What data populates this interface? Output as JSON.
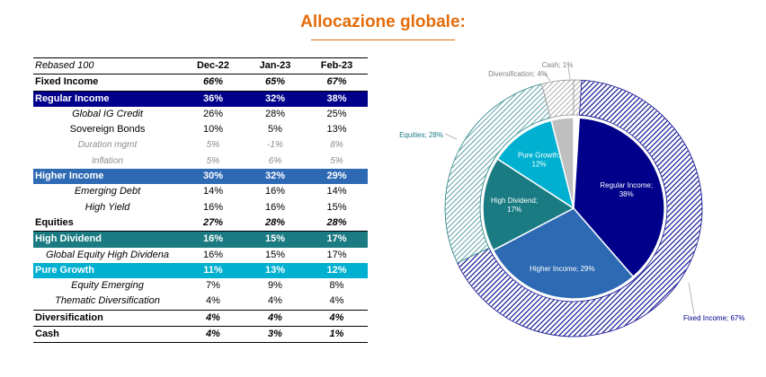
{
  "title": "Allocazione globale:",
  "table": {
    "header": [
      "Rebased 100",
      "Dec-22",
      "Jan-23",
      "Feb-23"
    ],
    "rows": [
      {
        "label": "Fixed Income",
        "values": [
          "66%",
          "65%",
          "67%"
        ],
        "style": "section"
      },
      {
        "label": "Regular Income",
        "values": [
          "36%",
          "32%",
          "38%"
        ],
        "style": "bar",
        "color": "#00008b"
      },
      {
        "label": "Global IG Credit",
        "values": [
          "26%",
          "28%",
          "25%"
        ],
        "style": "sub1-ital"
      },
      {
        "label": "Sovereign Bonds",
        "values": [
          "10%",
          "5%",
          "13%"
        ],
        "style": "sub1"
      },
      {
        "label": "Duration mgmt",
        "values": [
          "5%",
          "-1%",
          "8%"
        ],
        "style": "sub2"
      },
      {
        "label": "Inflation",
        "values": [
          "5%",
          "6%",
          "5%"
        ],
        "style": "sub2"
      },
      {
        "label": "Higher Income",
        "values": [
          "30%",
          "32%",
          "29%"
        ],
        "style": "bar",
        "color": "#2e6ab4"
      },
      {
        "label": "Emerging Debt",
        "values": [
          "14%",
          "16%",
          "14%"
        ],
        "style": "sub1-ital"
      },
      {
        "label": "High Yield",
        "values": [
          "16%",
          "16%",
          "15%"
        ],
        "style": "sub1-ital"
      },
      {
        "label": "Equities",
        "values": [
          "27%",
          "28%",
          "28%"
        ],
        "style": "section"
      },
      {
        "label": "High Dividend",
        "values": [
          "16%",
          "15%",
          "17%"
        ],
        "style": "bar",
        "color": "#1b7b82"
      },
      {
        "label": "Global Equity High Dividena",
        "values": [
          "16%",
          "15%",
          "17%"
        ],
        "style": "sub1-ital"
      },
      {
        "label": "Pure Growth",
        "values": [
          "11%",
          "13%",
          "12%"
        ],
        "style": "bar",
        "color": "#00b0d0"
      },
      {
        "label": "Equity Emerging",
        "values": [
          "7%",
          "9%",
          "8%"
        ],
        "style": "sub1-ital"
      },
      {
        "label": "Thematic Diversification",
        "values": [
          "4%",
          "4%",
          "4%"
        ],
        "style": "sub1-ital"
      },
      {
        "label": "Diversification",
        "values": [
          "4%",
          "4%",
          "4%"
        ],
        "style": "section-line"
      },
      {
        "label": "Cash",
        "values": [
          "4%",
          "3%",
          "1%"
        ],
        "style": "section-line"
      }
    ]
  },
  "chart_data": {
    "type": "pie",
    "variant": "nested donut",
    "inner_ring": [
      {
        "label": "Regular Income; 38%",
        "name": "Regular Income",
        "value": 38,
        "color": "#00008b"
      },
      {
        "label": "Higher Income; 29%",
        "name": "Higher Income",
        "value": 29,
        "color": "#2e6ab4"
      },
      {
        "label": "High Dividend; 17%",
        "name": "High Dividend",
        "value": 17,
        "color": "#1b7b82"
      },
      {
        "label": "Pure Growth; 12%",
        "name": "Pure Growth",
        "value": 12,
        "color": "#00b0d0"
      },
      {
        "label": "",
        "name": "Diversification",
        "value": 4,
        "color": "#bfbfbf"
      },
      {
        "label": "",
        "name": "Cash",
        "value": 1,
        "color": "#ffffff"
      }
    ],
    "outer_ring": [
      {
        "label": "Fixed Income; 67%",
        "name": "Fixed Income",
        "value": 67,
        "color": "#00008b"
      },
      {
        "label": "Equities; 28%",
        "name": "Equities",
        "value": 28,
        "color": "#1b7b82"
      },
      {
        "label": "Diversification; 4%",
        "name": "Diversification",
        "value": 4,
        "color": "#8c8c8c"
      },
      {
        "label": "Cash; 1%",
        "name": "Cash",
        "value": 1,
        "color": "#8c8c8c"
      }
    ]
  }
}
